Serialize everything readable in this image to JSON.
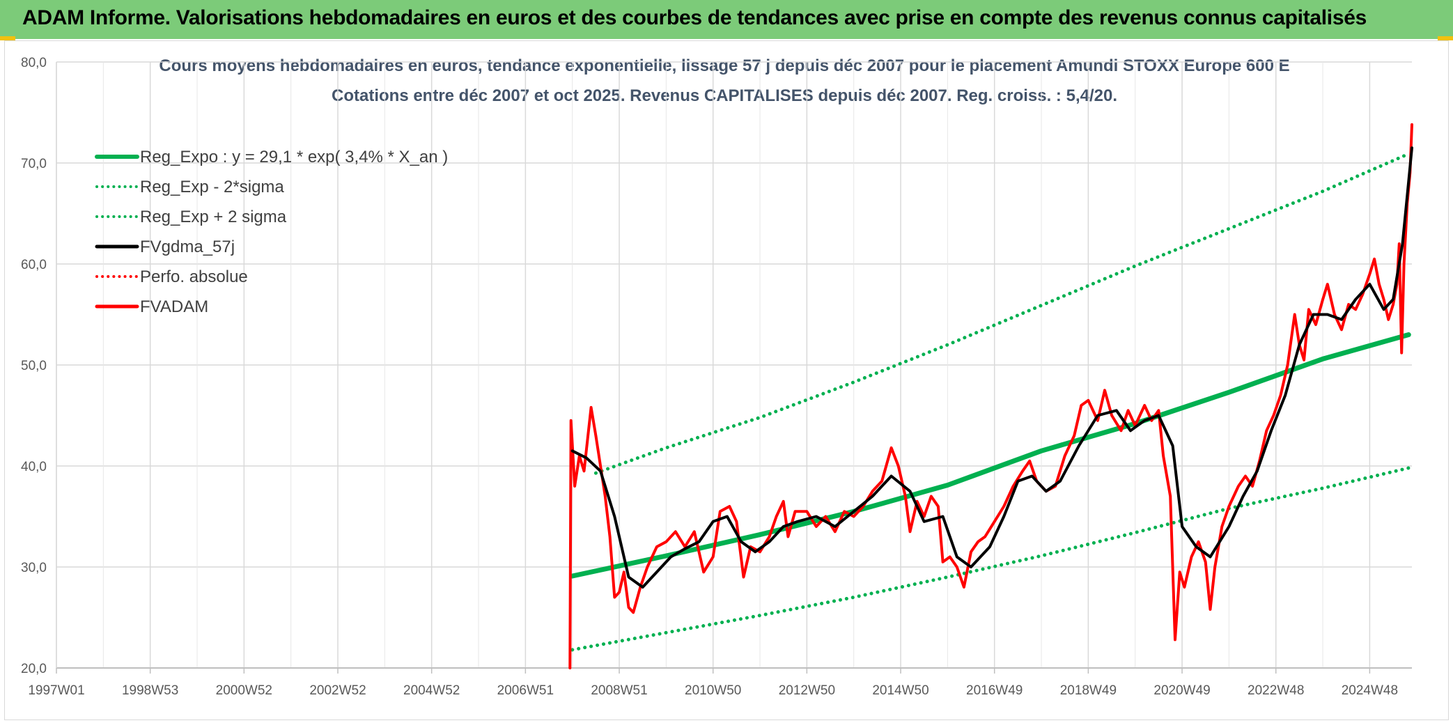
{
  "banner": {
    "title": "ADAM Informe. Valorisations hebdomadaires en euros et des courbes de tendances avec prise en compte des revenus connus capitalisés",
    "background": "#7ccb79"
  },
  "chart_data": {
    "type": "line",
    "title": "Cours moyens hebdomadaires en euros, tendance exponentielle, lissage 57 j depuis déc 2007 pour le placement Amundi STOXX Europe 600 E",
    "subtitle": "Cotations entre déc 2007 et oct 2025. Revenus CAPITALISES depuis déc 2007. Reg. croiss. : 5,4/20.",
    "xlabel": "",
    "ylabel": "",
    "ylim": [
      20,
      80
    ],
    "y_ticks": [
      "20,0",
      "30,0",
      "40,0",
      "50,0",
      "60,0",
      "70,0",
      "80,0"
    ],
    "x_tick_labels": [
      "1997W01",
      "1998W53",
      "2000W52",
      "2002W52",
      "2004W52",
      "2006W51",
      "2008W51",
      "2010W50",
      "2012W50",
      "2014W50",
      "2016W49",
      "2018W49",
      "2020W49",
      "2022W48",
      "2024W48"
    ],
    "x_tick_years": [
      1997.0,
      1999.0,
      2001.0,
      2003.0,
      2005.0,
      2007.0,
      2009.0,
      2011.0,
      2013.0,
      2015.0,
      2017.0,
      2019.0,
      2021.0,
      2023.0,
      2025.0
    ],
    "xlim": [
      1997.0,
      2025.9
    ],
    "grid": true,
    "legend_position": "top-left",
    "series": [
      {
        "name": "Reg_Expo : y = 29,1 * exp( 3,4% *  X_an )",
        "color": "#00b050",
        "style": "solid",
        "width": 7,
        "points": [
          [
            2008.0,
            29.1
          ],
          [
            2010.0,
            31.1
          ],
          [
            2012.0,
            33.2
          ],
          [
            2014.0,
            35.5
          ],
          [
            2016.0,
            38.1
          ],
          [
            2018.0,
            41.5
          ],
          [
            2020.0,
            44.2
          ],
          [
            2022.0,
            47.3
          ],
          [
            2024.0,
            50.6
          ],
          [
            2025.83,
            53.0
          ]
        ]
      },
      {
        "name": "Reg_Exp - 2*sigma",
        "color": "#00b050",
        "style": "dotted",
        "width": 5,
        "points": [
          [
            2008.0,
            21.8
          ],
          [
            2010.0,
            23.5
          ],
          [
            2012.0,
            25.2
          ],
          [
            2014.0,
            27.0
          ],
          [
            2016.0,
            29.0
          ],
          [
            2018.0,
            31.1
          ],
          [
            2020.0,
            33.4
          ],
          [
            2022.0,
            35.8
          ],
          [
            2024.0,
            37.8
          ],
          [
            2025.83,
            39.8
          ]
        ]
      },
      {
        "name": "Reg_Exp + 2 sigma",
        "color": "#00b050",
        "style": "dotted",
        "width": 5,
        "points": [
          [
            2008.5,
            39.3
          ],
          [
            2010.0,
            41.8
          ],
          [
            2012.0,
            44.8
          ],
          [
            2014.0,
            48.3
          ],
          [
            2016.0,
            52.0
          ],
          [
            2018.0,
            55.9
          ],
          [
            2020.0,
            59.8
          ],
          [
            2022.0,
            63.5
          ],
          [
            2024.0,
            67.2
          ],
          [
            2025.83,
            70.9
          ]
        ]
      },
      {
        "name": "FVgdma_57j",
        "color": "#000000",
        "style": "solid",
        "width": 4,
        "points": [
          [
            2008.0,
            41.5
          ],
          [
            2008.3,
            40.8
          ],
          [
            2008.6,
            39.5
          ],
          [
            2008.9,
            35.0
          ],
          [
            2009.2,
            29.0
          ],
          [
            2009.5,
            28.0
          ],
          [
            2009.8,
            29.5
          ],
          [
            2010.1,
            31.0
          ],
          [
            2010.4,
            31.8
          ],
          [
            2010.7,
            32.5
          ],
          [
            2011.0,
            34.5
          ],
          [
            2011.3,
            35.0
          ],
          [
            2011.6,
            32.5
          ],
          [
            2011.9,
            31.5
          ],
          [
            2012.2,
            32.5
          ],
          [
            2012.5,
            34.0
          ],
          [
            2012.8,
            34.5
          ],
          [
            2013.2,
            35.0
          ],
          [
            2013.6,
            34.0
          ],
          [
            2014.0,
            35.5
          ],
          [
            2014.4,
            37.0
          ],
          [
            2014.8,
            39.0
          ],
          [
            2015.2,
            37.5
          ],
          [
            2015.5,
            34.5
          ],
          [
            2015.9,
            35.0
          ],
          [
            2016.2,
            31.0
          ],
          [
            2016.5,
            30.0
          ],
          [
            2016.9,
            32.0
          ],
          [
            2017.2,
            35.0
          ],
          [
            2017.5,
            38.5
          ],
          [
            2017.8,
            39.0
          ],
          [
            2018.1,
            37.5
          ],
          [
            2018.4,
            38.5
          ],
          [
            2018.8,
            42.0
          ],
          [
            2019.2,
            45.0
          ],
          [
            2019.6,
            45.5
          ],
          [
            2019.9,
            43.5
          ],
          [
            2020.2,
            44.5
          ],
          [
            2020.5,
            45.0
          ],
          [
            2020.8,
            42.0
          ],
          [
            2021.0,
            34.0
          ],
          [
            2021.3,
            32.0
          ],
          [
            2021.6,
            31.0
          ],
          [
            2022.0,
            34.0
          ],
          [
            2022.3,
            37.0
          ],
          [
            2022.6,
            39.5
          ],
          [
            2022.9,
            43.5
          ],
          [
            2023.2,
            47.0
          ],
          [
            2023.5,
            52.0
          ],
          [
            2023.8,
            55.0
          ],
          [
            2024.1,
            55.0
          ],
          [
            2024.4,
            54.5
          ],
          [
            2024.7,
            56.5
          ],
          [
            2025.0,
            58.0
          ],
          [
            2025.3,
            55.5
          ],
          [
            2025.5,
            56.5
          ],
          [
            2025.7,
            62.0
          ],
          [
            2025.9,
            71.5
          ]
        ]
      },
      {
        "name": "Perfo. absolue",
        "color": "#ff0000",
        "style": "dotted",
        "width": 4,
        "points": []
      },
      {
        "name": "FVADAM",
        "color": "#ff0000",
        "style": "solid",
        "width": 4,
        "points": [
          [
            2007.95,
            20.0
          ],
          [
            2007.97,
            44.5
          ],
          [
            2008.05,
            38.0
          ],
          [
            2008.15,
            41.0
          ],
          [
            2008.25,
            39.5
          ],
          [
            2008.4,
            45.8
          ],
          [
            2008.5,
            43.0
          ],
          [
            2008.6,
            40.0
          ],
          [
            2008.7,
            37.0
          ],
          [
            2008.8,
            33.0
          ],
          [
            2008.9,
            27.0
          ],
          [
            2009.0,
            27.5
          ],
          [
            2009.1,
            29.5
          ],
          [
            2009.2,
            26.0
          ],
          [
            2009.3,
            25.5
          ],
          [
            2009.45,
            28.0
          ],
          [
            2009.6,
            30.0
          ],
          [
            2009.8,
            32.0
          ],
          [
            2010.0,
            32.5
          ],
          [
            2010.2,
            33.5
          ],
          [
            2010.4,
            32.0
          ],
          [
            2010.6,
            33.5
          ],
          [
            2010.8,
            29.5
          ],
          [
            2011.0,
            31.0
          ],
          [
            2011.15,
            35.5
          ],
          [
            2011.35,
            36.0
          ],
          [
            2011.5,
            34.5
          ],
          [
            2011.65,
            29.0
          ],
          [
            2011.8,
            32.0
          ],
          [
            2012.0,
            31.5
          ],
          [
            2012.2,
            33.0
          ],
          [
            2012.35,
            35.0
          ],
          [
            2012.5,
            36.5
          ],
          [
            2012.6,
            33.0
          ],
          [
            2012.75,
            35.5
          ],
          [
            2013.0,
            35.5
          ],
          [
            2013.2,
            34.0
          ],
          [
            2013.4,
            35.0
          ],
          [
            2013.6,
            33.5
          ],
          [
            2013.8,
            35.5
          ],
          [
            2014.0,
            35.0
          ],
          [
            2014.2,
            36.0
          ],
          [
            2014.4,
            37.5
          ],
          [
            2014.6,
            38.5
          ],
          [
            2014.8,
            41.8
          ],
          [
            2014.95,
            40.0
          ],
          [
            2015.1,
            37.0
          ],
          [
            2015.2,
            33.5
          ],
          [
            2015.35,
            36.5
          ],
          [
            2015.5,
            35.0
          ],
          [
            2015.65,
            37.0
          ],
          [
            2015.8,
            36.0
          ],
          [
            2015.9,
            30.5
          ],
          [
            2016.05,
            31.0
          ],
          [
            2016.2,
            30.0
          ],
          [
            2016.35,
            28.0
          ],
          [
            2016.5,
            31.5
          ],
          [
            2016.65,
            32.5
          ],
          [
            2016.8,
            33.0
          ],
          [
            2017.0,
            34.5
          ],
          [
            2017.2,
            36.0
          ],
          [
            2017.4,
            38.0
          ],
          [
            2017.6,
            39.5
          ],
          [
            2017.75,
            40.5
          ],
          [
            2017.9,
            38.5
          ],
          [
            2018.1,
            37.5
          ],
          [
            2018.3,
            38.0
          ],
          [
            2018.5,
            41.0
          ],
          [
            2018.7,
            43.0
          ],
          [
            2018.85,
            46.0
          ],
          [
            2019.0,
            46.5
          ],
          [
            2019.2,
            44.5
          ],
          [
            2019.35,
            47.5
          ],
          [
            2019.5,
            45.0
          ],
          [
            2019.7,
            43.5
          ],
          [
            2019.85,
            45.5
          ],
          [
            2020.0,
            44.0
          ],
          [
            2020.2,
            46.0
          ],
          [
            2020.35,
            44.5
          ],
          [
            2020.5,
            45.5
          ],
          [
            2020.6,
            41.0
          ],
          [
            2020.75,
            37.0
          ],
          [
            2020.85,
            22.8
          ],
          [
            2020.95,
            29.5
          ],
          [
            2021.05,
            28.0
          ],
          [
            2021.2,
            31.0
          ],
          [
            2021.35,
            32.5
          ],
          [
            2021.5,
            30.5
          ],
          [
            2021.6,
            25.8
          ],
          [
            2021.7,
            30.0
          ],
          [
            2021.85,
            34.0
          ],
          [
            2022.0,
            36.0
          ],
          [
            2022.2,
            38.0
          ],
          [
            2022.35,
            39.0
          ],
          [
            2022.5,
            38.0
          ],
          [
            2022.65,
            40.5
          ],
          [
            2022.8,
            43.5
          ],
          [
            2022.95,
            45.0
          ],
          [
            2023.1,
            47.0
          ],
          [
            2023.25,
            50.0
          ],
          [
            2023.4,
            55.0
          ],
          [
            2023.5,
            52.0
          ],
          [
            2023.6,
            50.5
          ],
          [
            2023.7,
            55.5
          ],
          [
            2023.85,
            54.0
          ],
          [
            2024.0,
            56.5
          ],
          [
            2024.1,
            58.0
          ],
          [
            2024.25,
            55.0
          ],
          [
            2024.4,
            53.5
          ],
          [
            2024.55,
            56.0
          ],
          [
            2024.7,
            55.5
          ],
          [
            2024.85,
            57.0
          ],
          [
            2025.0,
            59.0
          ],
          [
            2025.1,
            60.5
          ],
          [
            2025.2,
            58.0
          ],
          [
            2025.3,
            56.5
          ],
          [
            2025.4,
            54.5
          ],
          [
            2025.5,
            56.0
          ],
          [
            2025.58,
            58.0
          ],
          [
            2025.63,
            62.0
          ],
          [
            2025.68,
            51.2
          ],
          [
            2025.73,
            60.0
          ],
          [
            2025.8,
            66.0
          ],
          [
            2025.86,
            69.0
          ],
          [
            2025.9,
            73.8
          ]
        ]
      }
    ]
  }
}
